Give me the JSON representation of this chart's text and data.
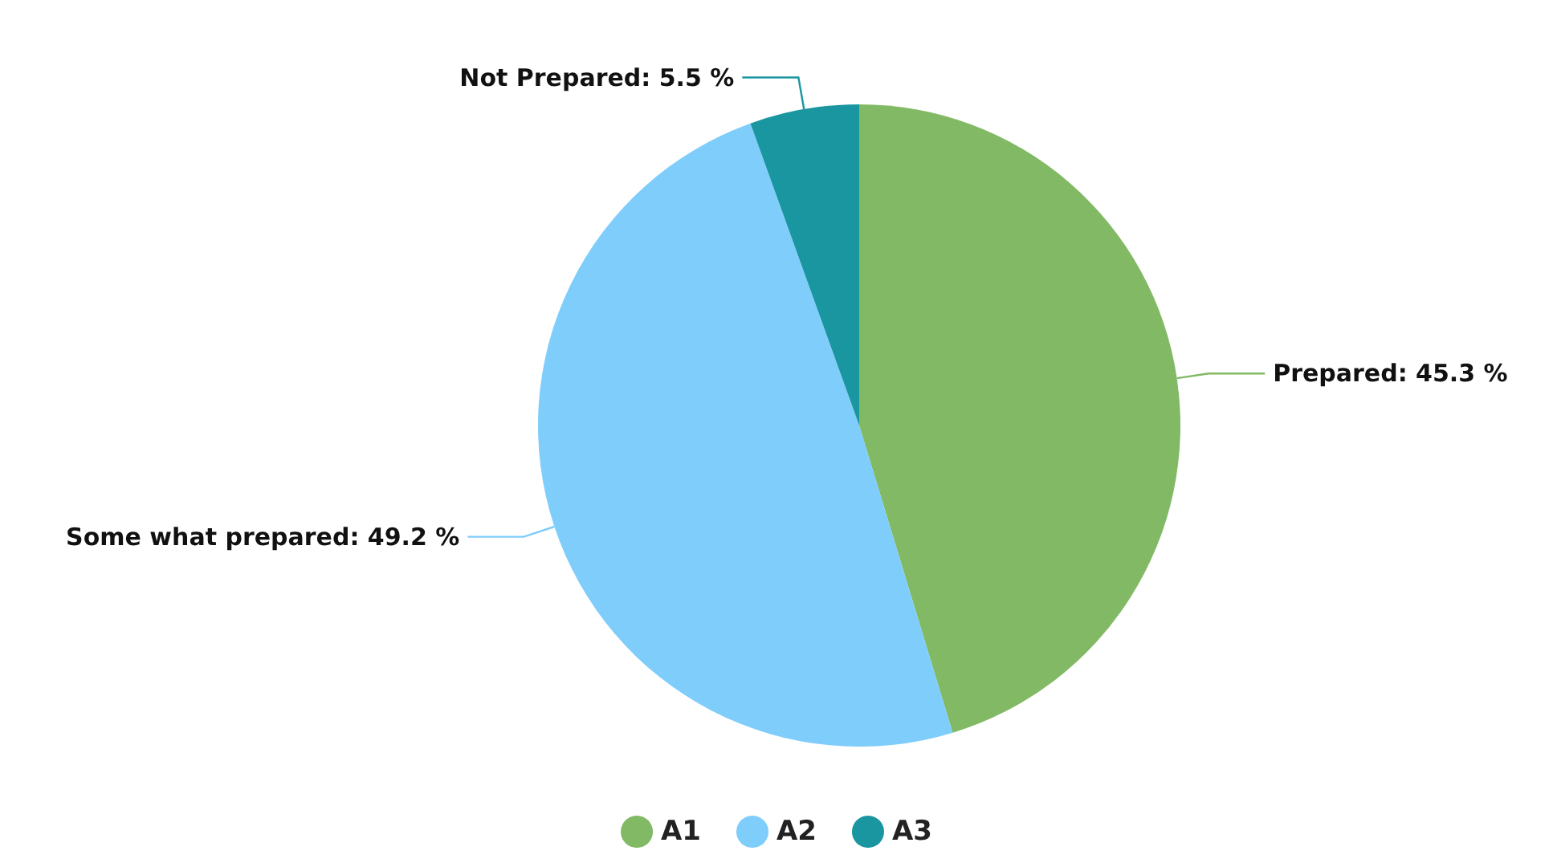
{
  "chart_data": {
    "type": "pie",
    "categories": [
      "A1",
      "A2",
      "A3"
    ],
    "values": [
      45.3,
      49.2,
      5.5
    ],
    "colors": [
      "#82b964",
      "#7fcdfb",
      "#1a96a0"
    ],
    "value_labels": [
      "Prepared: 45.3 %",
      "Some what prepared: 49.2 %",
      "Not Prepared: 5.5 %"
    ],
    "legend": "bottom"
  }
}
